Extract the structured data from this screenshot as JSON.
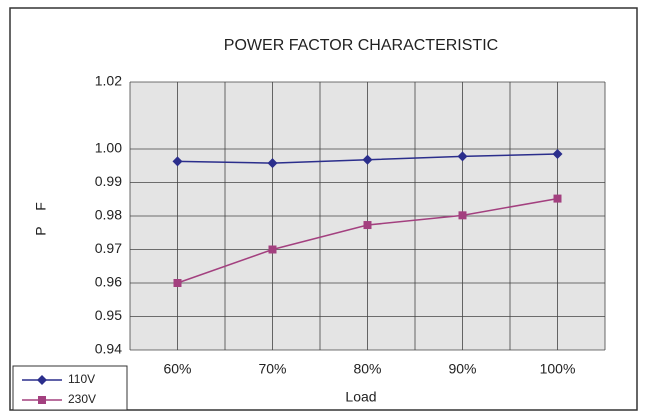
{
  "chart_data": {
    "type": "line",
    "title": "POWER FACTOR CHARACTERISTIC",
    "x_label": "Load",
    "y_label": "P F",
    "categories": [
      "60%",
      "70%",
      "80%",
      "90%",
      "100%"
    ],
    "series": [
      {
        "name": "110V",
        "color": "#2b2e8c",
        "marker": "diamond",
        "values": [
          0.9963,
          0.9958,
          0.9968,
          0.9978,
          0.9985
        ]
      },
      {
        "name": "230V",
        "color": "#a3407f",
        "marker": "square",
        "values": [
          0.96,
          0.97,
          0.9773,
          0.9802,
          0.9852
        ]
      }
    ],
    "ylim": [
      0.94,
      1.02
    ],
    "yticks": [
      0.94,
      0.95,
      0.96,
      0.97,
      0.98,
      0.99,
      {
        "value": 1,
        "label": "1.00"
      },
      1.02
    ],
    "grid": true,
    "legend": "lower left"
  }
}
